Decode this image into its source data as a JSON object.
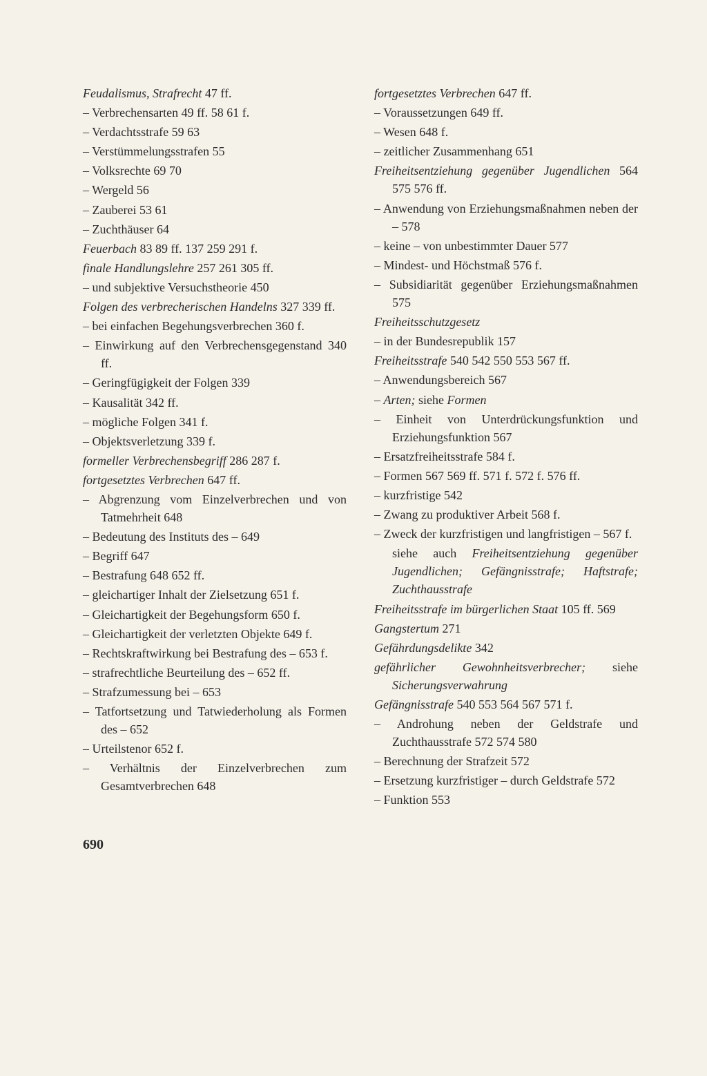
{
  "pageNumber": "690",
  "left": [
    {
      "type": "heading",
      "title": "Feudalismus, Strafrecht",
      "pages": "47 ff."
    },
    {
      "type": "entry",
      "text": "– Verbrechensarten 49 ff. 58 61 f."
    },
    {
      "type": "entry",
      "text": "– Verdachtsstrafe 59 63"
    },
    {
      "type": "entry",
      "text": "– Verstümmelungsstrafen 55"
    },
    {
      "type": "entry",
      "text": "– Volksrechte 69 70"
    },
    {
      "type": "entry",
      "text": "– Wergeld 56"
    },
    {
      "type": "entry",
      "text": "– Zauberei 53 61"
    },
    {
      "type": "entry",
      "text": "– Zuchthäuser 64"
    },
    {
      "type": "heading",
      "title": "Feuerbach",
      "pages": "83 89 ff. 137 259 291 f."
    },
    {
      "type": "heading",
      "title": "finale Handlungslehre",
      "pages": "257 261 305 ff."
    },
    {
      "type": "entry",
      "text": "– und subjektive Versuchstheorie 450"
    },
    {
      "type": "heading",
      "title": "Folgen des verbrecherischen Handelns",
      "pages": "327 339 ff."
    },
    {
      "type": "entry",
      "text": "– bei einfachen Begehungsverbrechen 360 f."
    },
    {
      "type": "entry",
      "text": "– Einwirkung auf den Verbrechensgegenstand 340 ff."
    },
    {
      "type": "entry",
      "text": "– Geringfügigkeit der Folgen 339"
    },
    {
      "type": "entry",
      "text": "– Kausalität 342 ff."
    },
    {
      "type": "entry",
      "text": "– mögliche Folgen 341 f."
    },
    {
      "type": "entry",
      "text": "– Objektsverletzung 339 f."
    },
    {
      "type": "heading",
      "title": "formeller Verbrechensbegriff",
      "pages": "286 287 f."
    },
    {
      "type": "heading",
      "title": "fortgesetztes Verbrechen",
      "pages": "647 ff."
    },
    {
      "type": "entry",
      "text": "– Abgrenzung vom Einzelverbrechen und von Tatmehrheit 648"
    },
    {
      "type": "entry",
      "text": "– Bedeutung des Instituts des – 649"
    },
    {
      "type": "entry",
      "text": "– Begriff 647"
    },
    {
      "type": "entry",
      "text": "– Bestrafung 648 652 ff."
    },
    {
      "type": "entry",
      "text": "– gleichartiger Inhalt der Zielsetzung 651 f."
    },
    {
      "type": "entry",
      "text": "– Gleichartigkeit der Begehungsform 650 f."
    },
    {
      "type": "entry",
      "text": "– Gleichartigkeit der verletzten Objekte 649 f."
    },
    {
      "type": "entry",
      "text": "– Rechtskraftwirkung bei Bestrafung des – 653 f."
    },
    {
      "type": "entry",
      "text": "– strafrechtliche Beurteilung des – 652 ff."
    },
    {
      "type": "entry",
      "text": "– Strafzumessung bei – 653"
    },
    {
      "type": "entry",
      "text": "– Tatfortsetzung und Tatwiederholung als Formen des – 652"
    },
    {
      "type": "entry",
      "text": "– Urteilstenor 652 f."
    },
    {
      "type": "entry",
      "text": "– Verhältnis der Einzelverbrechen zum Gesamtverbrechen 648"
    }
  ],
  "right": [
    {
      "type": "heading",
      "title": "fortgesetztes Verbrechen",
      "pages": "647 ff."
    },
    {
      "type": "entry",
      "text": "– Voraussetzungen 649 ff."
    },
    {
      "type": "entry",
      "text": "– Wesen 648 f."
    },
    {
      "type": "entry",
      "text": "– zeitlicher Zusammenhang 651"
    },
    {
      "type": "heading",
      "title": "Freiheitsentziehung gegenüber Jugendlichen",
      "pages": "564 575 576 ff."
    },
    {
      "type": "entry",
      "text": "– Anwendung von Erziehungsmaßnahmen neben der – 578"
    },
    {
      "type": "entry",
      "text": "– keine – von unbestimmter Dauer 577"
    },
    {
      "type": "entry",
      "text": "– Mindest- und Höchstmaß 576 f."
    },
    {
      "type": "entry",
      "text": "– Subsidiarität gegenüber Erziehungsmaßnahmen 575"
    },
    {
      "type": "heading",
      "title": "Freiheitsschutzgesetz",
      "pages": ""
    },
    {
      "type": "entry",
      "text": "– in der Bundesrepublik 157"
    },
    {
      "type": "heading",
      "title": "Freiheitsstrafe",
      "pages": "540 542 550 553 567 ff."
    },
    {
      "type": "entry",
      "text": "– Anwendungsbereich 567"
    },
    {
      "type": "entry-mixed",
      "prefix": "– ",
      "italic": "Arten;",
      "rest": " siehe ",
      "italic2": "Formen"
    },
    {
      "type": "entry",
      "text": "– Einheit von Unterdrückungsfunktion und Erziehungsfunktion 567"
    },
    {
      "type": "entry",
      "text": "– Ersatzfreiheitsstrafe 584 f."
    },
    {
      "type": "entry",
      "text": "– Formen 567 569 ff. 571 f. 572 f. 576 ff."
    },
    {
      "type": "entry",
      "text": "– kurzfristige 542"
    },
    {
      "type": "entry",
      "text": "– Zwang zu produktiver Arbeit 568 f."
    },
    {
      "type": "entry",
      "text": "– Zweck der kurzfristigen und langfristigen – 567 f."
    },
    {
      "type": "see",
      "prefix": "siehe auch ",
      "italic": "Freiheitsentziehung gegenüber Jugendlichen; Gefängnisstrafe; Haftstrafe; Zuchthausstrafe"
    },
    {
      "type": "heading",
      "title": "Freiheitsstrafe im bürgerlichen Staat",
      "pages": "105 ff. 569"
    },
    {
      "type": "heading",
      "title": "Gangstertum",
      "pages": "271"
    },
    {
      "type": "heading",
      "title": "Gefährdungsdelikte",
      "pages": "342"
    },
    {
      "type": "heading-see",
      "title": "gefährlicher Gewohnheitsverbrecher;",
      "seePrefix": "siehe ",
      "seeItalic": "Sicherungsverwahrung"
    },
    {
      "type": "heading",
      "title": "Gefängnisstrafe",
      "pages": "540 553 564 567 571 f."
    },
    {
      "type": "entry",
      "text": "– Androhung neben der Geldstrafe und Zuchthausstrafe 572 574 580"
    },
    {
      "type": "entry",
      "text": "– Berechnung der Strafzeit 572"
    },
    {
      "type": "entry",
      "text": "– Ersetzung kurzfristiger – durch Geldstrafe 572"
    },
    {
      "type": "entry",
      "text": "– Funktion 553"
    }
  ]
}
